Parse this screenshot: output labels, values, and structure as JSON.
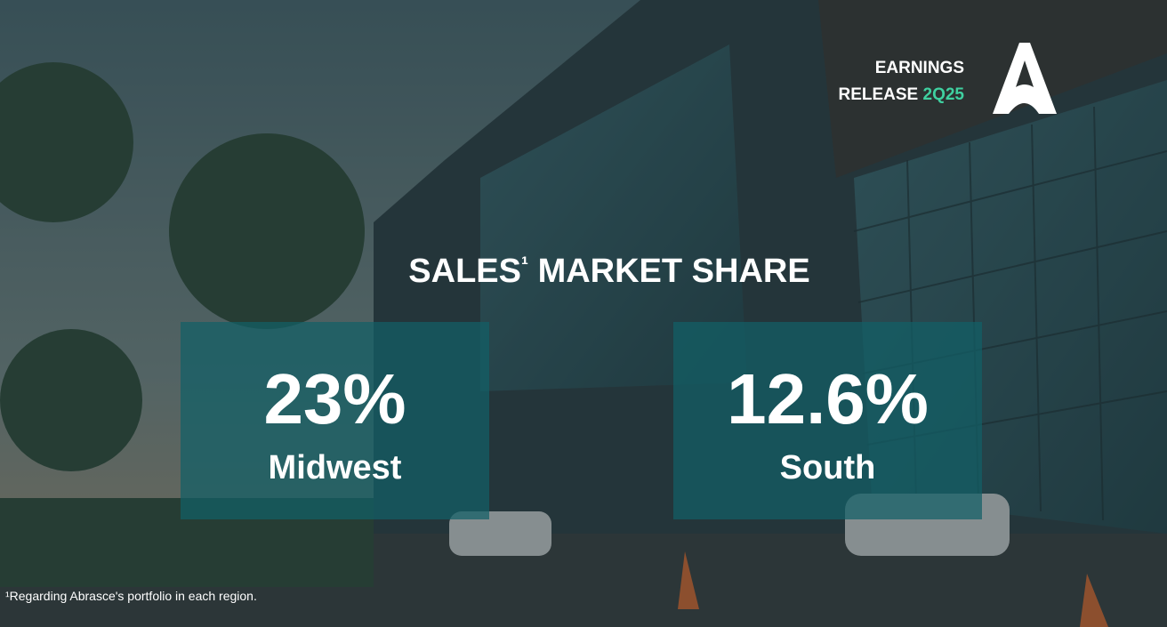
{
  "header": {
    "line1": "EARNINGS",
    "line2": "RELEASE",
    "edition": "2Q25"
  },
  "title": "SALES",
  "title_mark": "¹",
  "title_rest": "MARKET SHARE",
  "cards": [
    {
      "value": "23%",
      "region": "Midwest"
    },
    {
      "value": "12.6%",
      "region": "South"
    }
  ],
  "footnote": "¹Regarding Abrasce's portfolio in each region."
}
